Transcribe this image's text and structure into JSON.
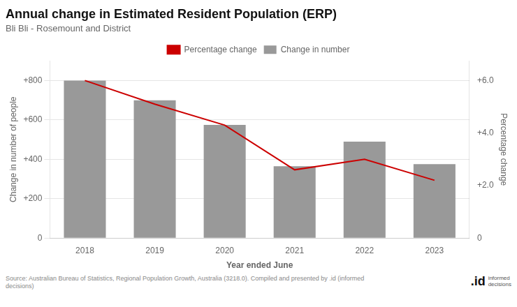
{
  "chart_data": {
    "type": "bar",
    "title": "Annual change in Estimated Resident Population (ERP)",
    "subtitle": "Bli Bli - Rosemount and District",
    "xlabel": "Year ended June",
    "ylabel": "Change in number of people",
    "y2label": "Percentage change",
    "categories": [
      "2018",
      "2019",
      "2020",
      "2021",
      "2022",
      "2023"
    ],
    "series": [
      {
        "name": "Change in number",
        "type": "bar",
        "color": "#999999",
        "values": [
          800,
          700,
          575,
          365,
          490,
          375
        ]
      },
      {
        "name": "Percentage change",
        "type": "line",
        "axis": "y2",
        "color": "#cc0000",
        "values": [
          6.0,
          5.1,
          4.3,
          2.6,
          3.0,
          2.2
        ]
      }
    ],
    "ylim": [
      0,
      900
    ],
    "yticks": [
      0,
      {
        "value": 200,
        "label": "+200"
      },
      {
        "value": 400,
        "label": "+400"
      },
      {
        "value": 600,
        "label": "+600"
      },
      {
        "value": 800,
        "label": "+800"
      }
    ],
    "y2lim": [
      0,
      6.75
    ],
    "y2ticks": [
      0,
      {
        "value": 2.0,
        "label": "+2.0"
      },
      {
        "value": 4.0,
        "label": "+4.0"
      },
      {
        "value": 6.0,
        "label": "+6.0"
      }
    ],
    "grid": true,
    "legend": "top",
    "annotations": [
      "Source: Australian Bureau of Statistics, Regional Population Growth, Australia (3218.0). Compiled and presented by .id (informed\ndecisions)",
      ".id",
      "informed\ndecisions"
    ]
  }
}
